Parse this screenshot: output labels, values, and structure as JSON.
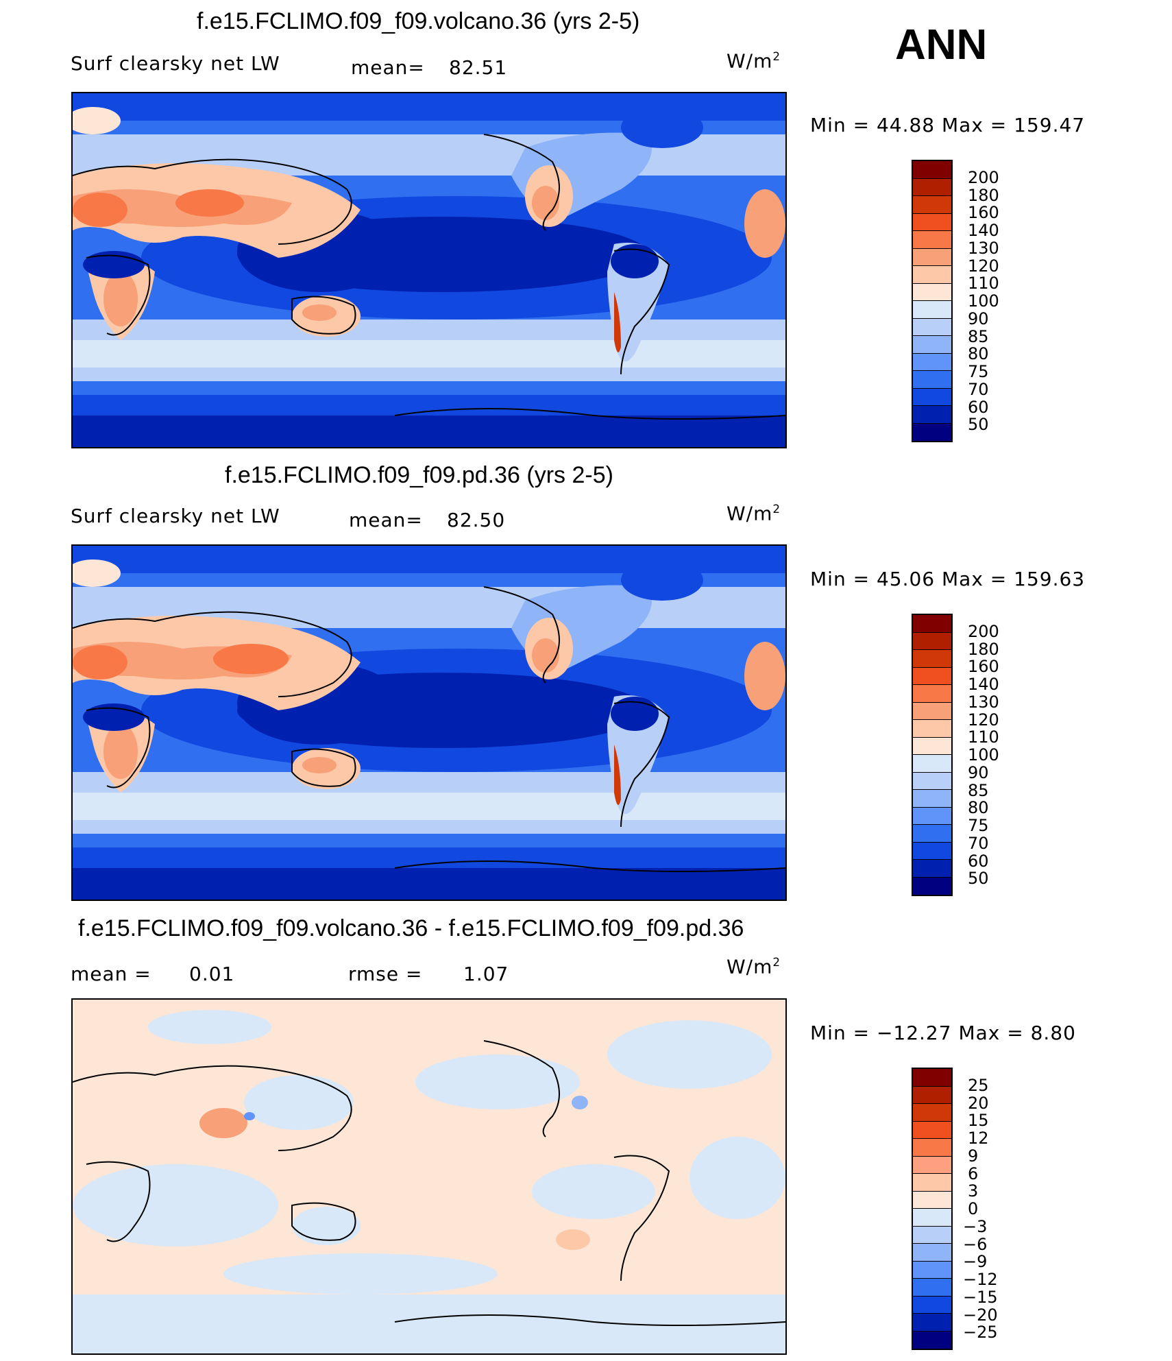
{
  "season": "ANN",
  "units": "W/m",
  "units_sup": "2",
  "panels": [
    {
      "title": "f.e15.FCLIMO.f09_f09.volcano.36 (yrs 2-5)",
      "field": "Surf clearsky net LW",
      "stat1_label": "mean=",
      "stat1_value": "82.51",
      "minmax": "Min =   44.88 Max = 159.47",
      "colorbar_labels": [
        "200",
        "180",
        "160",
        "140",
        "130",
        "120",
        "110",
        "100",
        "90",
        "85",
        "80",
        "75",
        "70",
        "60",
        "50"
      ]
    },
    {
      "title": "f.e15.FCLIMO.f09_f09.pd.36 (yrs 2-5)",
      "field": "Surf clearsky net LW",
      "stat1_label": "mean=",
      "stat1_value": "82.50",
      "minmax": "Min =   45.06 Max = 159.63",
      "colorbar_labels": [
        "200",
        "180",
        "160",
        "140",
        "130",
        "120",
        "110",
        "100",
        "90",
        "85",
        "80",
        "75",
        "70",
        "60",
        "50"
      ]
    },
    {
      "title": "f.e15.FCLIMO.f09_f09.volcano.36 - f.e15.FCLIMO.f09_f09.pd.36",
      "stat1_label": "mean =",
      "stat1_value": "0.01",
      "stat2_label": "rmse =",
      "stat2_value": "1.07",
      "minmax": "Min = −12.27 Max =     8.80",
      "colorbar_labels": [
        "25",
        "20",
        "15",
        "12",
        "9",
        "6",
        "3",
        "0",
        "−3",
        "−6",
        "−9",
        "−12",
        "−15",
        "−20",
        "−25"
      ]
    }
  ],
  "colors": {
    "abs_scale": [
      "#800000",
      "#b02000",
      "#d03808",
      "#f05020",
      "#f87848",
      "#f8a078",
      "#fcc8a8",
      "#fde6d6",
      "#d8e8f8",
      "#b8d0f8",
      "#90b4f8",
      "#6094f8",
      "#3070f0",
      "#1048e0",
      "#0020b0",
      "#000080"
    ],
    "diff_scale": [
      "#800000",
      "#b02000",
      "#d03808",
      "#f05020",
      "#f87848",
      "#fca080",
      "#fcc8a8",
      "#fde6d6",
      "#d8e8f8",
      "#b8d0f8",
      "#90b4f8",
      "#6094f8",
      "#3070f0",
      "#1048e0",
      "#0020b0",
      "#000080"
    ]
  }
}
